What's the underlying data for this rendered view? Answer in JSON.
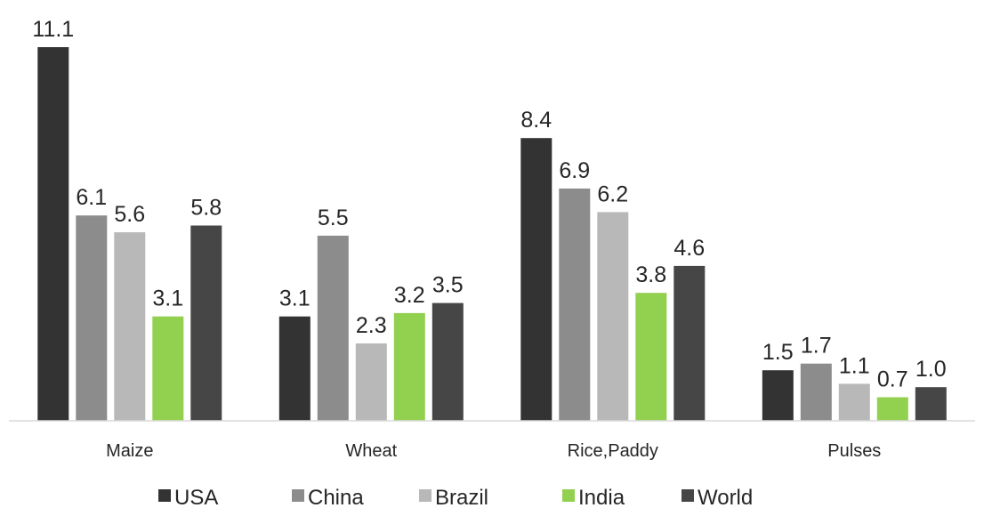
{
  "chart_data": {
    "type": "bar",
    "title": "",
    "xlabel": "",
    "ylabel": "",
    "categories": [
      "Maize",
      "Wheat",
      "Rice,Paddy",
      "Pulses"
    ],
    "series": [
      {
        "name": "USA",
        "color": "#333333",
        "values": [
          11.1,
          3.1,
          8.4,
          1.5
        ],
        "labels": [
          "11.1",
          "3.1",
          "8.4",
          "1.5"
        ]
      },
      {
        "name": "China",
        "color": "#8c8c8c",
        "values": [
          6.1,
          5.5,
          6.9,
          1.7
        ],
        "labels": [
          "6.1",
          "5.5",
          "6.9",
          "1.7"
        ]
      },
      {
        "name": "Brazil",
        "color": "#b8b8b8",
        "values": [
          5.6,
          2.3,
          6.2,
          1.1
        ],
        "labels": [
          "5.6",
          "2.3",
          "6.2",
          "1.1"
        ]
      },
      {
        "name": "India",
        "color": "#92d050",
        "values": [
          3.1,
          3.2,
          3.8,
          0.7
        ],
        "labels": [
          "3.1",
          "3.2",
          "3.8",
          "0.7"
        ]
      },
      {
        "name": "World",
        "color": "#464646",
        "values": [
          5.8,
          3.5,
          4.6,
          1.0
        ],
        "labels": [
          "5.8",
          "3.5",
          "4.6",
          "1.0"
        ]
      }
    ],
    "ylim": [
      0,
      11.1
    ],
    "grid": false,
    "legend": "bottom-center"
  }
}
